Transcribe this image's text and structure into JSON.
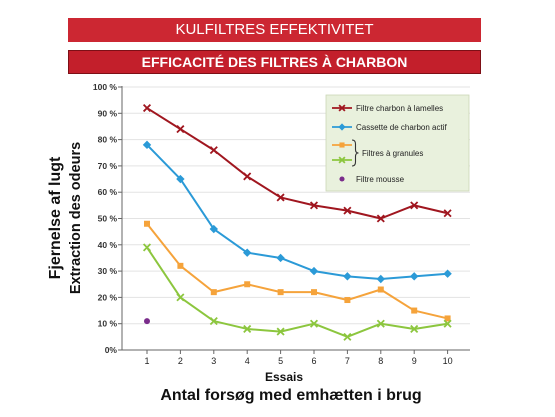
{
  "colors": {
    "banner": "#cc2732",
    "banner_secondary": "#c31f2b",
    "legend_background": "#e9f1dd"
  },
  "chart_data": {
    "type": "line",
    "title": "KULFILTRES EFFEKTIVITET",
    "subtitle": "EFFICACITÉ DES FILTRES À CHARBON",
    "xlabel": "Essais",
    "xlabel_secondary": "Antal forsøg med emhætten i brug",
    "ylabel": "Extraction des odeurs",
    "ylabel_secondary": "Fjernelse af lugt",
    "x": [
      1,
      2,
      3,
      4,
      5,
      6,
      7,
      8,
      9,
      10
    ],
    "ylim": [
      0,
      100
    ],
    "yticks": [
      0,
      10,
      20,
      30,
      40,
      50,
      60,
      70,
      80,
      90,
      100
    ],
    "ytick_labels": [
      "0%",
      "10 %",
      "20 %",
      "30 %",
      "40 %",
      "50 %",
      "60 %",
      "70 %",
      "80 %",
      "90 %",
      "100 %"
    ],
    "grid": true,
    "legend_position": "top-right",
    "series": [
      {
        "name": "Filtre charbon à lamelles",
        "color": "#a0161f",
        "marker": "x",
        "values": [
          92,
          84,
          76,
          66,
          58,
          55,
          53,
          50,
          55,
          52
        ]
      },
      {
        "name": "Cassette de charbon actif",
        "color": "#2b9ad7",
        "marker": "diamond",
        "values": [
          78,
          65,
          46,
          37,
          35,
          30,
          28,
          27,
          28,
          29
        ]
      },
      {
        "name": "Filtres à granules",
        "color": "#f5a33b",
        "marker": "square",
        "values": [
          48,
          32,
          22,
          25,
          22,
          22,
          19,
          23,
          15,
          12
        ]
      },
      {
        "name": "Filtres à granules",
        "color": "#8cc63e",
        "marker": "x",
        "values": [
          39,
          20,
          11,
          8,
          7,
          10,
          5,
          10,
          8,
          10
        ]
      },
      {
        "name": "Filtre mousse",
        "color": "#7a2c8b",
        "marker": "circle",
        "values": [
          11,
          null,
          null,
          null,
          null,
          null,
          null,
          null,
          null,
          null
        ]
      }
    ]
  }
}
